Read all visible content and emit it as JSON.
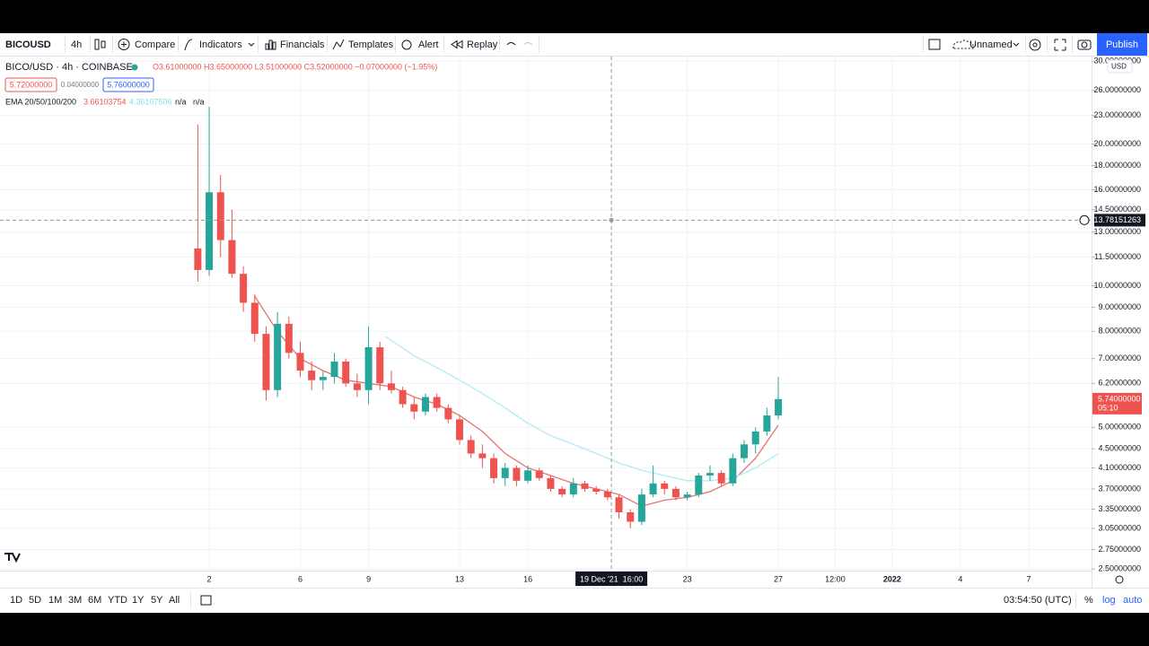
{
  "toolbar": {
    "symbol": "BICOUSD",
    "interval": "4h",
    "buttons": [
      "Compare",
      "Indicators",
      "Financials",
      "Templates",
      "Alert",
      "Replay"
    ],
    "layout_name": "Unnamed",
    "publish": "Publish"
  },
  "legend": {
    "symbol": "BICO/USD · 4h · COINBASE",
    "ohlc": "O3.61000000 H3.65000000 L3.51000000 C3.52000000 −0.07000000 (−1.95%)",
    "bid": "5.72000000",
    "spread": "0.04000000",
    "ask": "5.76000000",
    "indicator": "EMA 20/50/100/200",
    "indicator_values": [
      "3.66103754",
      "4.36107506",
      "n/a",
      "n/a"
    ]
  },
  "chart_data": {
    "type": "candlestick",
    "log_scale": true,
    "grid": true,
    "up_color": "#26a69a",
    "down_color": "#ef5350",
    "currency": "USD",
    "xlim": [
      -7.19,
      40.76
    ],
    "xticks": [
      2,
      6,
      9,
      13,
      16,
      23,
      27,
      {
        "value": 29.5,
        "label": "12:00"
      },
      {
        "value": 32,
        "label": "2022"
      },
      {
        "value": 35,
        "label": "4"
      },
      {
        "value": 38,
        "label": "7"
      }
    ],
    "ylim": [
      2.48,
      30.7
    ],
    "yticks": [
      {
        "value": 30,
        "label": "30.00000000"
      },
      {
        "value": 26,
        "label": "26.00000000"
      },
      {
        "value": 23,
        "label": "23.00000000"
      },
      {
        "value": 20,
        "label": "20.00000000"
      },
      {
        "value": 18,
        "label": "18.00000000"
      },
      {
        "value": 16,
        "label": "16.00000000"
      },
      {
        "value": 14.5,
        "label": "14.50000000"
      },
      {
        "value": 13,
        "label": "13.00000000"
      },
      {
        "value": 11.5,
        "label": "11.50000000"
      },
      {
        "value": 10,
        "label": "10.00000000"
      },
      {
        "value": 9,
        "label": "9.00000000"
      },
      {
        "value": 8,
        "label": "8.00000000"
      },
      {
        "value": 7,
        "label": "7.00000000"
      },
      {
        "value": 6.2,
        "label": "6.20000000"
      },
      {
        "value": 5,
        "label": "5.00000000"
      },
      {
        "value": 4.5,
        "label": "4.50000000"
      },
      {
        "value": 4.1,
        "label": "4.10000000"
      },
      {
        "value": 3.7,
        "label": "3.70000000"
      },
      {
        "value": 3.35,
        "label": "3.35000000"
      },
      {
        "value": 3.05,
        "label": "3.05000000"
      },
      {
        "value": 2.75,
        "label": "2.75000000"
      },
      {
        "value": 2.5,
        "label": "2.50000000"
      }
    ],
    "x": [
      1.5,
      2,
      2.5,
      3,
      3.5,
      4,
      4.5,
      5,
      5.5,
      6,
      6.5,
      7,
      7.5,
      8,
      8.5,
      9,
      9.5,
      10,
      10.5,
      11,
      11.5,
      12,
      12.5,
      13,
      13.5,
      14,
      14.5,
      15,
      15.5,
      16,
      16.5,
      17,
      17.5,
      18,
      18.5,
      19,
      19.5,
      20,
      20.5,
      21,
      21.5,
      22,
      22.5,
      23,
      23.5,
      24,
      24.5,
      25,
      25.5,
      26,
      26.5,
      27
    ],
    "ohlc": [
      [
        12,
        22,
        10.2,
        10.8
      ],
      [
        10.8,
        24,
        10.5,
        15.8
      ],
      [
        15.8,
        17.2,
        11.5,
        12.5
      ],
      [
        12.5,
        14.5,
        10.4,
        10.6
      ],
      [
        10.6,
        11,
        8.8,
        9.2
      ],
      [
        9.2,
        9.6,
        7.6,
        7.9
      ],
      [
        7.9,
        8.2,
        5.7,
        6.0
      ],
      [
        6.0,
        8.8,
        5.8,
        8.3
      ],
      [
        8.3,
        8.6,
        7.0,
        7.2
      ],
      [
        7.2,
        7.6,
        6.4,
        6.6
      ],
      [
        6.6,
        6.9,
        6.0,
        6.3
      ],
      [
        6.3,
        6.6,
        6.0,
        6.4
      ],
      [
        6.4,
        7.2,
        6.2,
        6.9
      ],
      [
        6.9,
        7.0,
        6.1,
        6.2
      ],
      [
        6.2,
        6.5,
        5.8,
        6.0
      ],
      [
        6.0,
        8.2,
        5.6,
        7.4
      ],
      [
        7.4,
        7.6,
        6.0,
        6.2
      ],
      [
        6.2,
        6.6,
        5.9,
        6.0
      ],
      [
        6.0,
        6.1,
        5.5,
        5.6
      ],
      [
        5.6,
        5.8,
        5.2,
        5.4
      ],
      [
        5.4,
        5.9,
        5.3,
        5.8
      ],
      [
        5.8,
        5.9,
        5.4,
        5.5
      ],
      [
        5.5,
        5.6,
        5.1,
        5.2
      ],
      [
        5.2,
        5.3,
        4.6,
        4.7
      ],
      [
        4.7,
        4.8,
        4.3,
        4.4
      ],
      [
        4.4,
        4.6,
        4.1,
        4.3
      ],
      [
        4.3,
        4.4,
        3.8,
        3.9
      ],
      [
        3.9,
        4.2,
        3.75,
        4.1
      ],
      [
        4.1,
        4.15,
        3.75,
        3.85
      ],
      [
        3.85,
        4.15,
        3.8,
        4.05
      ],
      [
        4.05,
        4.1,
        3.85,
        3.9
      ],
      [
        3.9,
        3.95,
        3.65,
        3.7
      ],
      [
        3.7,
        3.75,
        3.55,
        3.6
      ],
      [
        3.6,
        3.9,
        3.55,
        3.8
      ],
      [
        3.8,
        3.85,
        3.65,
        3.7
      ],
      [
        3.7,
        3.75,
        3.6,
        3.65
      ],
      [
        3.65,
        3.7,
        3.5,
        3.55
      ],
      [
        3.55,
        3.6,
        3.2,
        3.3
      ],
      [
        3.3,
        3.35,
        3.05,
        3.15
      ],
      [
        3.15,
        3.7,
        3.1,
        3.6
      ],
      [
        3.6,
        4.15,
        3.55,
        3.8
      ],
      [
        3.8,
        3.85,
        3.6,
        3.7
      ],
      [
        3.7,
        3.75,
        3.5,
        3.55
      ],
      [
        3.55,
        3.65,
        3.5,
        3.6
      ],
      [
        3.6,
        4.0,
        3.55,
        3.95
      ],
      [
        3.95,
        4.15,
        3.85,
        4.0
      ],
      [
        4.0,
        4.05,
        3.75,
        3.8
      ],
      [
        3.8,
        4.4,
        3.75,
        4.3
      ],
      [
        4.3,
        4.7,
        4.2,
        4.6
      ],
      [
        4.6,
        5.0,
        4.4,
        4.9
      ],
      [
        4.9,
        5.5,
        4.8,
        5.3
      ],
      [
        5.3,
        6.4,
        5.2,
        5.74
      ]
    ],
    "lines": [
      {
        "color": "#e57373",
        "x": [
          4,
          5,
          6,
          7,
          8,
          9,
          10,
          11,
          12,
          13,
          14,
          15,
          16,
          17,
          18,
          19,
          20,
          21,
          22,
          23,
          24,
          25,
          26,
          27
        ],
        "values": [
          9.5,
          8.0,
          7.0,
          6.6,
          6.3,
          6.2,
          6.1,
          5.8,
          5.6,
          5.3,
          4.9,
          4.4,
          4.1,
          3.95,
          3.8,
          3.7,
          3.6,
          3.4,
          3.5,
          3.55,
          3.65,
          3.85,
          4.3,
          5.05
        ]
      },
      {
        "color": "#b2ebf2",
        "x": [
          9.75,
          11,
          12,
          13,
          14,
          15,
          16,
          17,
          18,
          19,
          20,
          21,
          22,
          23,
          24,
          25,
          26,
          27
        ],
        "values": [
          7.8,
          7.1,
          6.7,
          6.3,
          5.9,
          5.5,
          5.1,
          4.8,
          4.6,
          4.4,
          4.2,
          4.05,
          3.95,
          3.85,
          3.85,
          3.9,
          4.1,
          4.4
        ]
      }
    ],
    "crosshair_x": {
      "value": 19.667,
      "label": "19 Dec '21  16:00"
    },
    "crosshair_y": {
      "value": 13.78151263,
      "label": "13.78151263"
    },
    "last_price": {
      "value": 5.74,
      "label": "5.74000000"
    },
    "countdown": "05:10"
  },
  "bottom_bar": {
    "ranges": [
      "1D",
      "5D",
      "1M",
      "3M",
      "6M",
      "YTD",
      "1Y",
      "5Y",
      "All"
    ],
    "clock": "03:54:50 (UTC)",
    "options": [
      "%",
      "log",
      "auto"
    ]
  }
}
